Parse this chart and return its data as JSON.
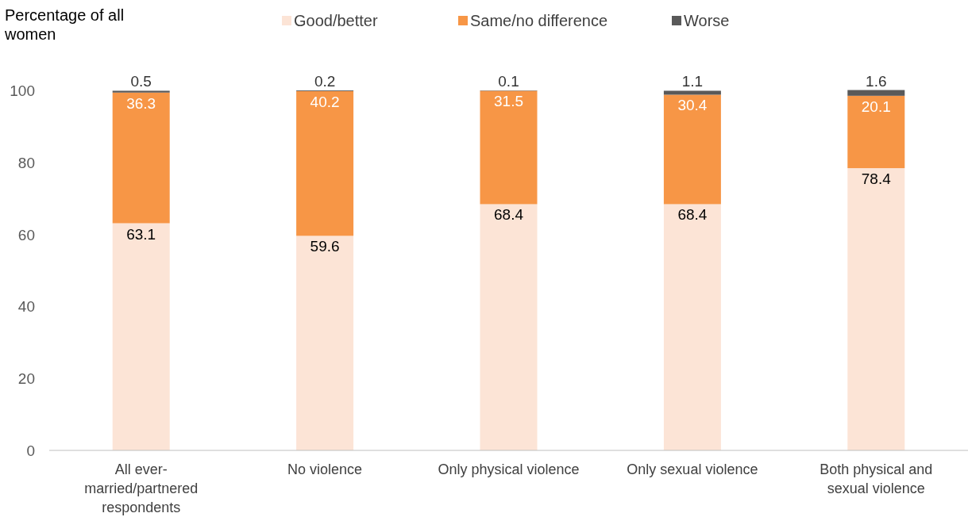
{
  "chart_data": {
    "type": "bar",
    "stacked": true,
    "ylabel": "Percentage of all women",
    "categories": [
      "All ever-married/partnered respondents",
      "No violence",
      "Only physical violence",
      "Only sexual violence",
      "Both physical and sexual violence"
    ],
    "series": [
      {
        "name": "Good/better",
        "color": "#fce4d6",
        "values": [
          63.1,
          59.6,
          68.4,
          68.4,
          78.4
        ]
      },
      {
        "name": "Same/no difference",
        "color": "#f79646",
        "values": [
          36.3,
          40.2,
          31.5,
          30.4,
          20.1
        ]
      },
      {
        "name": "Worse",
        "color": "#595959",
        "values": [
          0.5,
          0.2,
          0.1,
          1.1,
          1.6
        ]
      }
    ],
    "ylim": [
      0,
      100
    ],
    "yticks": [
      0,
      20,
      40,
      60,
      80,
      100
    ],
    "grid": false,
    "legend": "top",
    "data_labels": true
  }
}
